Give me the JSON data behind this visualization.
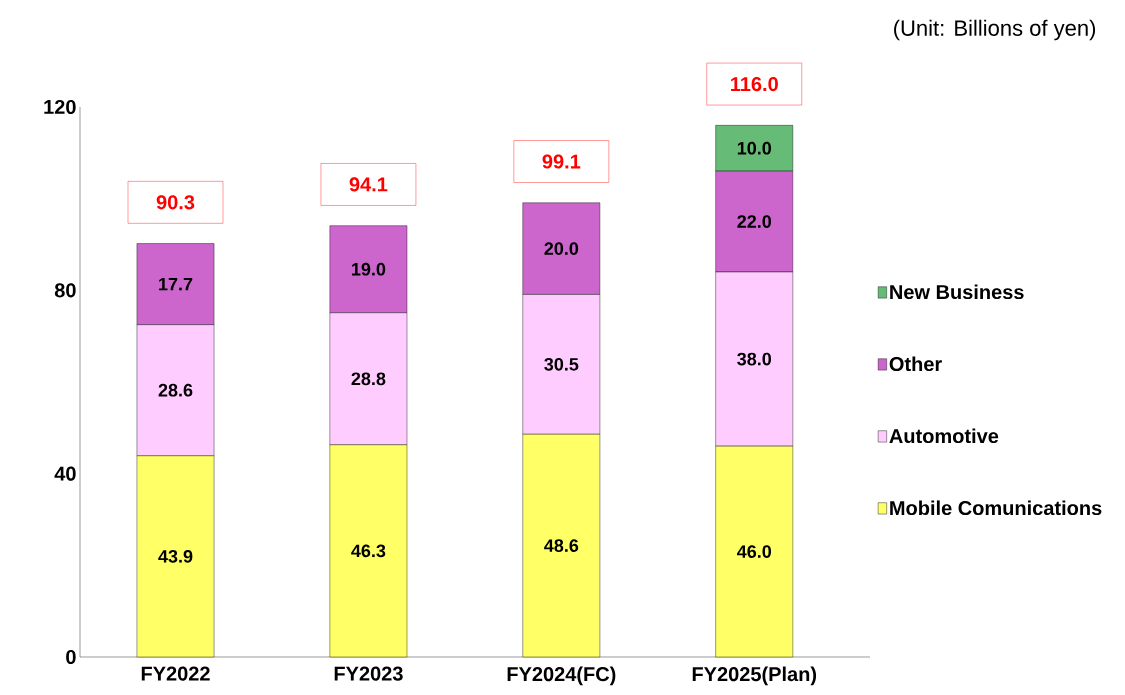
{
  "chart_data": {
    "type": "bar",
    "stacked": true,
    "categories": [
      "FY2022",
      "FY2023",
      "FY2024(FC)",
      "FY2025(Plan)"
    ],
    "series": [
      {
        "name": "Mobile Comunications",
        "color": "#ffff66",
        "values": [
          43.9,
          46.3,
          48.6,
          46.0
        ],
        "value_labels": [
          "43.9",
          "46.3",
          "48.6",
          "46.0"
        ]
      },
      {
        "name": "Automotive",
        "color": "#ffccff",
        "values": [
          28.6,
          28.8,
          30.5,
          38.0
        ],
        "value_labels": [
          "28.6",
          "28.8",
          "30.5",
          "38.0"
        ]
      },
      {
        "name": "Other",
        "color": "#cc66cc",
        "values": [
          17.7,
          19.0,
          20.0,
          22.0
        ],
        "value_labels": [
          "17.7",
          "19.0",
          "20.0",
          "22.0"
        ]
      },
      {
        "name": "New Business",
        "color": "#66bb77",
        "values": [
          null,
          null,
          null,
          10.0
        ],
        "value_labels": [
          null,
          null,
          null,
          "10.0"
        ]
      }
    ],
    "ylim": [
      0,
      120
    ],
    "yticks": [
      0,
      40,
      80,
      120
    ],
    "totals": [
      "90.3",
      "94.1",
      "99.1",
      "116.0"
    ],
    "legend": "right",
    "annotations": [
      "(Unit: Billions of yen)"
    ]
  }
}
